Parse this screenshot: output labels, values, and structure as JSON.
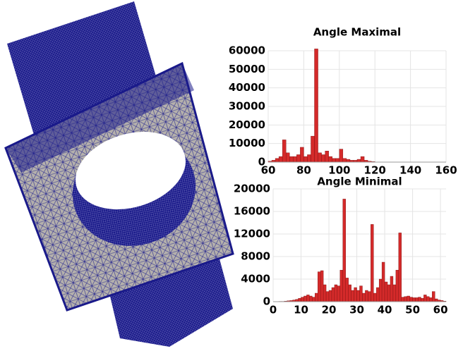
{
  "chart_data": [
    {
      "type": "histogram",
      "title": "Angle Maximal",
      "bins": [
        60,
        62,
        64,
        66,
        68,
        70,
        72,
        74,
        76,
        78,
        80,
        82,
        84,
        86,
        88,
        90,
        92,
        94,
        96,
        98,
        100,
        102,
        104,
        106,
        108,
        110,
        112,
        114,
        116,
        118,
        120
      ],
      "values": [
        500,
        1000,
        2000,
        3000,
        12000,
        5000,
        3000,
        3000,
        4000,
        8000,
        3000,
        4000,
        14000,
        61000,
        5000,
        4000,
        6000,
        3000,
        2000,
        2000,
        7000,
        2000,
        1500,
        1000,
        1000,
        1500,
        3000,
        1000,
        500,
        300
      ],
      "color": "#d42a2a",
      "xlim": [
        60,
        160
      ],
      "xticks": [
        60,
        80,
        100,
        120,
        140,
        160
      ],
      "ylim": [
        0,
        60000
      ],
      "yticks": [
        0,
        10000,
        20000,
        30000,
        40000,
        50000,
        60000
      ],
      "grid": true
    },
    {
      "type": "histogram",
      "title": "Angle Minimal",
      "bins": [
        0,
        1,
        2,
        3,
        4,
        5,
        6,
        7,
        8,
        9,
        10,
        11,
        12,
        13,
        14,
        15,
        16,
        17,
        18,
        19,
        20,
        21,
        22,
        23,
        24,
        25,
        26,
        27,
        28,
        29,
        30,
        31,
        32,
        33,
        34,
        35,
        36,
        37,
        38,
        39,
        40,
        41,
        42,
        43,
        44,
        45,
        46,
        47,
        48,
        49,
        50,
        51,
        52,
        53,
        54,
        55,
        56,
        57,
        58,
        59,
        60,
        61,
        62
      ],
      "values": [
        0,
        0,
        50,
        50,
        100,
        150,
        200,
        300,
        400,
        600,
        800,
        1000,
        1200,
        1000,
        800,
        1500,
        5300,
        5500,
        3000,
        1800,
        2000,
        2500,
        3000,
        2800,
        5600,
        18200,
        4200,
        3000,
        2000,
        2500,
        2000,
        2800,
        1500,
        2000,
        1800,
        13700,
        1500,
        2500,
        4000,
        7000,
        3500,
        3000,
        4500,
        3000,
        5600,
        12200,
        800,
        900,
        1000,
        800,
        700,
        700,
        800,
        600,
        1200,
        900,
        700,
        1800,
        500,
        300,
        200,
        100
      ],
      "color": "#d42a2a",
      "xlim": [
        0,
        62
      ],
      "xticks": [
        0,
        10,
        20,
        30,
        40,
        50,
        60
      ],
      "ylim": [
        0,
        20000
      ],
      "yticks": [
        0,
        4000,
        8000,
        12000,
        16000,
        20000
      ],
      "grid": true
    }
  ]
}
